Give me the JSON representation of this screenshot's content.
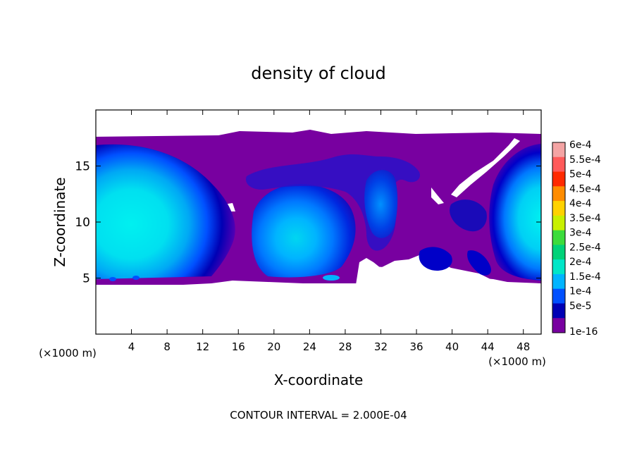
{
  "chart_data": {
    "type": "heatmap",
    "title": "density of cloud",
    "xlabel": "X-coordinate",
    "ylabel": "Z-coordinate",
    "x_unit": "(×1000 m)",
    "footer": "CONTOUR INTERVAL = 2.000E-04",
    "xlim": [
      0,
      50
    ],
    "ylim": [
      0,
      20
    ],
    "x_ticks": [
      4,
      8,
      12,
      16,
      20,
      24,
      28,
      32,
      36,
      40,
      44,
      48
    ],
    "y_ticks": [
      5,
      10,
      15
    ],
    "colorbar": {
      "levels": [
        "6e-4",
        "5.5e-4",
        "5e-4",
        "4.5e-4",
        "4e-4",
        "3.5e-4",
        "3e-4",
        "2.5e-4",
        "2e-4",
        "1.5e-4",
        "1e-4",
        "5e-5",
        "1e-16"
      ],
      "colors": [
        "#f4a4a4",
        "#ff5a5a",
        "#ff2a00",
        "#ff8c00",
        "#ffd200",
        "#c8f000",
        "#3cdc3c",
        "#00d278",
        "#00e6c8",
        "#00b4ff",
        "#0050ff",
        "#0000b4",
        "#7800a0"
      ]
    },
    "cloud_cells": [
      {
        "x_range": [
          0,
          15.5
        ],
        "z_range": [
          4.5,
          17.8
        ],
        "core_x": 4,
        "core_z": 10,
        "peak": "2e-4"
      },
      {
        "x_range": [
          16,
          31
        ],
        "z_range": [
          4.3,
          17.8
        ],
        "core_x": 21,
        "core_z": 8.5,
        "peak": "2e-4"
      },
      {
        "x_range": [
          31,
          38
        ],
        "z_range": [
          5,
          16
        ],
        "core_x": 32.5,
        "core_z": 10.5,
        "peak": "1e-4"
      },
      {
        "x_range": [
          44,
          50
        ],
        "z_range": [
          4.8,
          17.5
        ],
        "core_x": 50,
        "core_z": 11,
        "peak": "2e-4"
      }
    ]
  }
}
